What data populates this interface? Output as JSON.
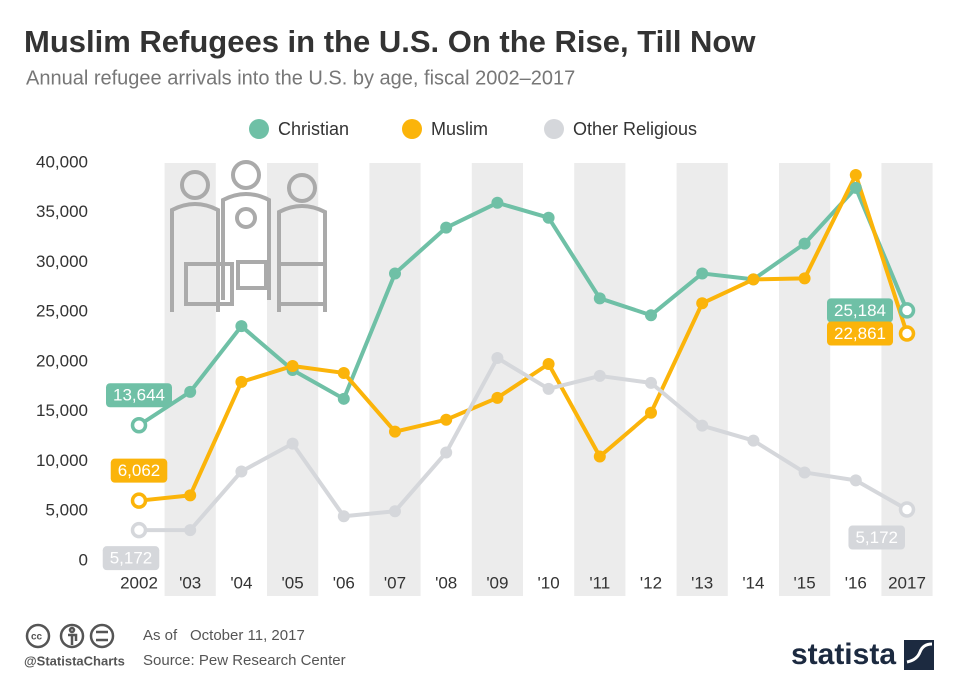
{
  "chart_data": {
    "type": "line",
    "title": "Muslim Refugees in the U.S. On the Rise, Till Now",
    "subtitle": "Annual refugee arrivals into the U.S. by age, fiscal 2002–2017",
    "categories": [
      "2002",
      "'03",
      "'04",
      "'05",
      "'06",
      "'07",
      "'08",
      "'09",
      "'10",
      "'11",
      "'12",
      "'13",
      "'14",
      "'15",
      "'16",
      "2017"
    ],
    "series": [
      {
        "name": "Christian",
        "color": "#6fc0a6",
        "values": [
          13644,
          17000,
          23600,
          19200,
          16300,
          28900,
          33500,
          36000,
          34500,
          26400,
          24700,
          28900,
          28300,
          31900,
          37500,
          25184
        ],
        "value_labels": [
          "13,644",
          null,
          null,
          null,
          null,
          null,
          null,
          null,
          null,
          null,
          null,
          null,
          null,
          null,
          null,
          "25,184"
        ]
      },
      {
        "name": "Muslim",
        "color": "#fbb40a",
        "values": [
          6062,
          6600,
          18000,
          19600,
          18900,
          13000,
          14200,
          16400,
          19800,
          10500,
          14900,
          25900,
          28300,
          28400,
          38800,
          22861
        ],
        "value_labels": [
          "6,062",
          null,
          null,
          null,
          null,
          null,
          null,
          null,
          null,
          null,
          null,
          null,
          null,
          null,
          null,
          "22,861"
        ]
      },
      {
        "name": "Other Religious",
        "color": "#d5d7db",
        "values": [
          3100,
          3100,
          9000,
          11800,
          4500,
          5000,
          10900,
          20400,
          17300,
          18600,
          17900,
          13600,
          12100,
          8900,
          8100,
          5172
        ],
        "value_labels": [
          null,
          null,
          null,
          null,
          null,
          null,
          null,
          null,
          null,
          null,
          null,
          null,
          null,
          null,
          null,
          "5,172"
        ]
      }
    ],
    "annotations": [
      "5,172"
    ],
    "ylim": [
      0,
      40000
    ],
    "yticks": [
      0,
      {
        "value": 5000,
        "label": "5,000"
      },
      {
        "value": 10000,
        "label": "10,000"
      },
      {
        "value": 15000,
        "label": "15,000"
      },
      {
        "value": 20000,
        "label": "20,000"
      },
      {
        "value": 25000,
        "label": "25,000"
      },
      {
        "value": 30000,
        "label": "30,000"
      },
      {
        "value": 35000,
        "label": "35,000"
      },
      {
        "value": 40000,
        "label": "40,000"
      }
    ],
    "grid": false
  },
  "footer": {
    "date_label": "As of",
    "date": "October 11, 2017",
    "source": "Source: Pew Research Center",
    "handle": "@StatistaCharts",
    "brand": "statista"
  }
}
